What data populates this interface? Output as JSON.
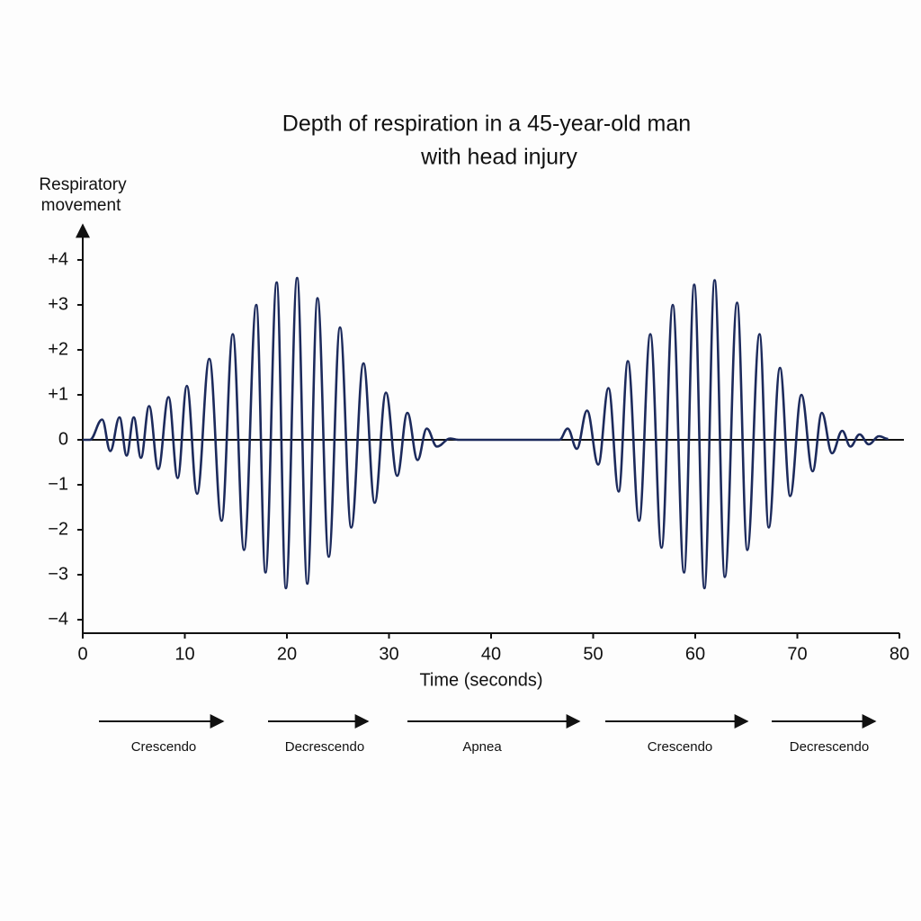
{
  "chart_data": {
    "type": "line",
    "title": [
      "Depth of respiration in a 45-year-old man",
      "with head injury"
    ],
    "y_label": [
      "Respiratory",
      "movement"
    ],
    "x_label": "Time (seconds)",
    "color": "#1c2a5c",
    "x": [
      0,
      0.7,
      1.9,
      2.7,
      3.6,
      4.3,
      5.0,
      5.7,
      6.5,
      7.4,
      8.4,
      9.3,
      10.2,
      11.2,
      12.4,
      13.6,
      14.7,
      15.8,
      17.0,
      17.9,
      19.0,
      19.9,
      21.0,
      22.0,
      23.0,
      24.1,
      25.2,
      26.3,
      27.5,
      28.6,
      29.7,
      30.8,
      31.8,
      32.8,
      33.7,
      34.7,
      36.0,
      36.8,
      46.7,
      47.5,
      48.4,
      49.4,
      50.5,
      51.5,
      52.5,
      53.4,
      54.5,
      55.6,
      56.7,
      57.8,
      58.9,
      59.9,
      60.9,
      61.9,
      62.9,
      64.1,
      65.1,
      66.3,
      67.2,
      68.3,
      69.3,
      70.4,
      71.5,
      72.4,
      73.4,
      74.4,
      75.2,
      76.1,
      77.0,
      78.0,
      78.9
    ],
    "values": [
      0,
      0,
      0.45,
      -0.25,
      0.5,
      -0.35,
      0.5,
      -0.4,
      0.75,
      -0.65,
      0.95,
      -0.85,
      1.2,
      -1.2,
      1.8,
      -1.8,
      2.35,
      -2.45,
      3.0,
      -2.95,
      3.5,
      -3.3,
      3.6,
      -3.2,
      3.15,
      -2.6,
      2.5,
      -1.95,
      1.7,
      -1.4,
      1.05,
      -0.8,
      0.6,
      -0.45,
      0.25,
      -0.15,
      0.03,
      0,
      0,
      0.25,
      -0.2,
      0.65,
      -0.55,
      1.15,
      -1.15,
      1.75,
      -1.8,
      2.35,
      -2.4,
      3.0,
      -2.95,
      3.45,
      -3.3,
      3.55,
      -3.05,
      3.05,
      -2.45,
      2.35,
      -1.95,
      1.6,
      -1.25,
      1.0,
      -0.7,
      0.6,
      -0.3,
      0.2,
      -0.15,
      0.12,
      -0.1,
      0.08,
      0.02
    ],
    "xlim": [
      0,
      80
    ],
    "xticks": [
      0,
      10,
      20,
      30,
      40,
      50,
      60,
      70,
      80
    ],
    "ylim": [
      -4.3,
      4.8
    ],
    "yticks": [
      {
        "value": 4,
        "label": "+4"
      },
      {
        "value": 3,
        "label": "+3"
      },
      {
        "value": 2,
        "label": "+2"
      },
      {
        "value": 1,
        "label": "+1"
      },
      0,
      {
        "value": -1,
        "label": "−1"
      },
      {
        "value": -2,
        "label": "−2"
      },
      {
        "value": -3,
        "label": "−3"
      },
      {
        "value": -4,
        "label": "−4"
      }
    ],
    "annotations": [
      "Crescendo",
      "Decrescendo",
      "Apnea",
      "Crescendo",
      "Decrescendo"
    ]
  }
}
